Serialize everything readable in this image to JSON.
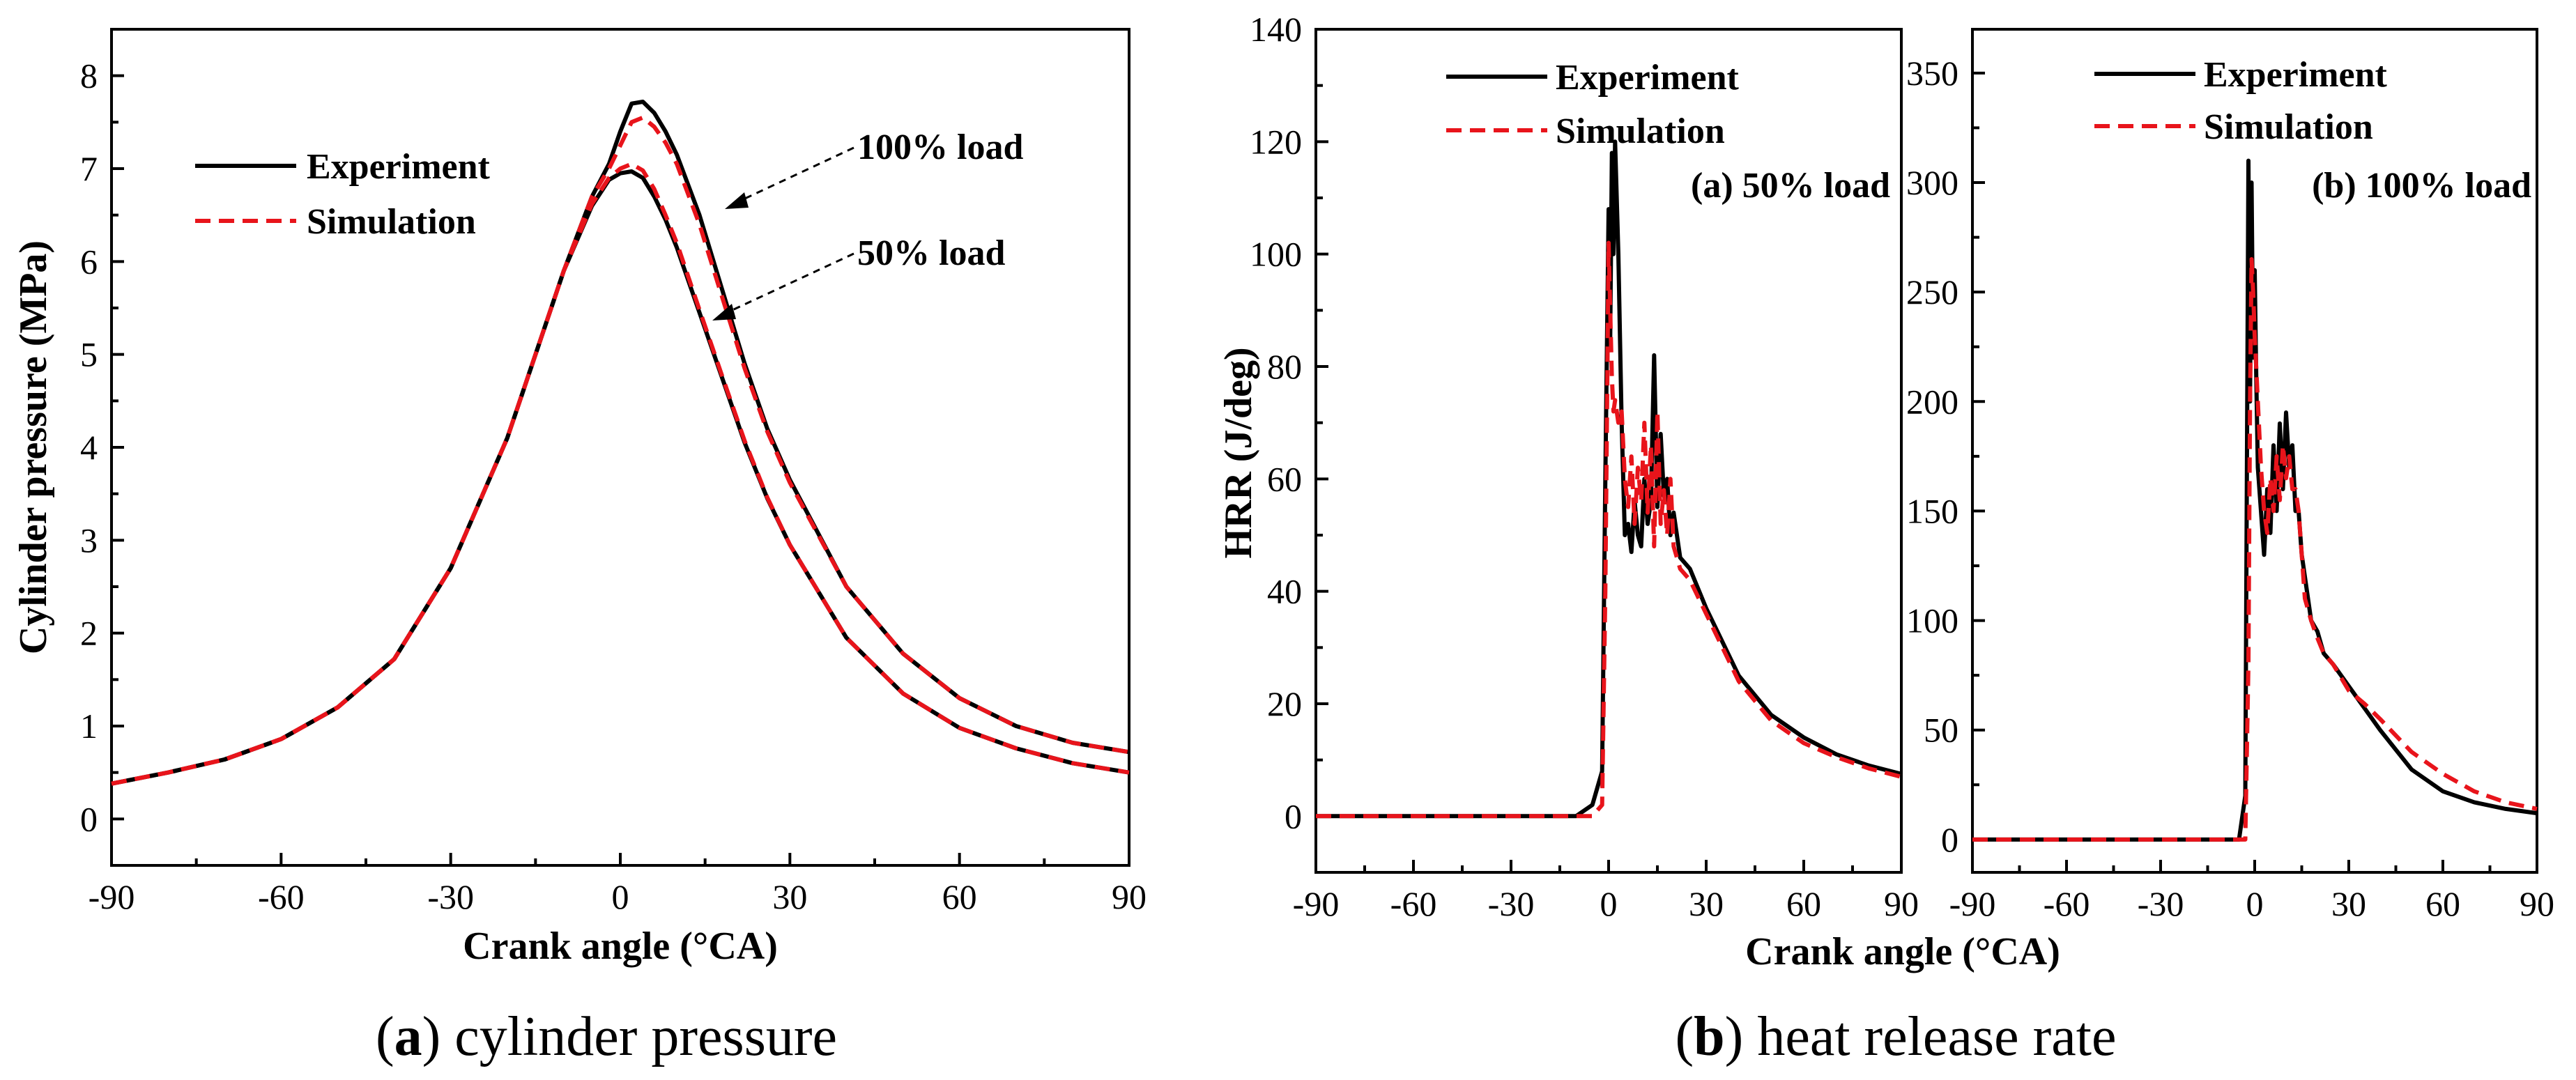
{
  "figure": {
    "caption_a_letter": "a",
    "caption_a_text": " cylinder pressure",
    "caption_b_letter": "b",
    "caption_b_text": " heat release rate",
    "colors": {
      "experiment": "#000000",
      "simulation": "#e8141b"
    }
  },
  "chart_data": [
    {
      "id": "pressure",
      "type": "line",
      "title": "",
      "xlabel": "Crank angle (°CA)",
      "ylabel": "Cylinder pressure (MPa)",
      "xlim": [
        -90,
        90
      ],
      "ylim": [
        -0.5,
        8.5
      ],
      "xticks": [
        -90,
        -60,
        -30,
        0,
        30,
        60,
        90
      ],
      "xtick_labels": [
        "-90",
        "-60",
        "-30",
        "0",
        "30",
        "60",
        "90"
      ],
      "yticks": [
        0,
        1,
        2,
        3,
        4,
        5,
        6,
        7,
        8
      ],
      "ytick_labels": [
        "0",
        "1",
        "2",
        "3",
        "4",
        "5",
        "6",
        "7",
        "8"
      ],
      "legend": [
        "Experiment",
        "Simulation"
      ],
      "annotations": [
        {
          "text": "100% load",
          "points_to": [
            14,
            6.6
          ]
        },
        {
          "text": "50% load",
          "points_to": [
            11,
            5.4
          ]
        }
      ],
      "series": [
        {
          "name": "Experiment 100% load",
          "style": "experiment",
          "x": [
            -90,
            -80,
            -70,
            -60,
            -50,
            -40,
            -30,
            -20,
            -10,
            -5,
            -2,
            0,
            2,
            4,
            6,
            8,
            10,
            14,
            18,
            22,
            26,
            30,
            40,
            50,
            60,
            70,
            80,
            90
          ],
          "y": [
            0.38,
            0.5,
            0.64,
            0.86,
            1.2,
            1.72,
            2.7,
            4.1,
            5.9,
            6.7,
            7.05,
            7.4,
            7.7,
            7.72,
            7.6,
            7.4,
            7.15,
            6.5,
            5.7,
            4.9,
            4.2,
            3.65,
            2.5,
            1.78,
            1.3,
            1.0,
            0.82,
            0.72
          ]
        },
        {
          "name": "Simulation 100% load",
          "style": "simulation",
          "x": [
            -90,
            -80,
            -70,
            -60,
            -50,
            -40,
            -30,
            -20,
            -10,
            -5,
            -2,
            0,
            2,
            4,
            6,
            8,
            10,
            14,
            18,
            22,
            26,
            30,
            40,
            50,
            60,
            70,
            80,
            90
          ],
          "y": [
            0.38,
            0.5,
            0.64,
            0.86,
            1.2,
            1.72,
            2.7,
            4.1,
            5.9,
            6.7,
            7.0,
            7.25,
            7.5,
            7.55,
            7.45,
            7.28,
            7.05,
            6.4,
            5.62,
            4.85,
            4.17,
            3.62,
            2.5,
            1.78,
            1.3,
            1.0,
            0.82,
            0.72
          ]
        },
        {
          "name": "Experiment 50% load",
          "style": "experiment",
          "x": [
            -90,
            -80,
            -70,
            -60,
            -50,
            -40,
            -30,
            -20,
            -10,
            -5,
            -2,
            0,
            2,
            4,
            6,
            8,
            10,
            14,
            18,
            22,
            26,
            30,
            40,
            50,
            60,
            70,
            80,
            90
          ],
          "y": [
            0.38,
            0.5,
            0.64,
            0.86,
            1.2,
            1.72,
            2.7,
            4.1,
            5.9,
            6.6,
            6.88,
            6.95,
            6.97,
            6.9,
            6.7,
            6.45,
            6.15,
            5.45,
            4.75,
            4.05,
            3.45,
            2.95,
            1.95,
            1.35,
            0.98,
            0.76,
            0.6,
            0.5
          ]
        },
        {
          "name": "Simulation 50% load",
          "style": "simulation",
          "x": [
            -90,
            -80,
            -70,
            -60,
            -50,
            -40,
            -30,
            -20,
            -10,
            -5,
            -2,
            0,
            2,
            4,
            6,
            8,
            10,
            14,
            18,
            22,
            26,
            30,
            40,
            50,
            60,
            70,
            80,
            90
          ],
          "y": [
            0.38,
            0.5,
            0.64,
            0.86,
            1.2,
            1.72,
            2.7,
            4.1,
            5.9,
            6.62,
            6.9,
            7.0,
            7.05,
            6.98,
            6.78,
            6.5,
            6.2,
            5.48,
            4.77,
            4.07,
            3.46,
            2.95,
            1.95,
            1.35,
            0.98,
            0.76,
            0.6,
            0.5
          ]
        }
      ]
    },
    {
      "id": "hrr50",
      "type": "line",
      "title": "(a) 50% load",
      "xlabel": "Crank angle (°CA)",
      "ylabel": "HRR (J/deg)",
      "xlim": [
        -90,
        90
      ],
      "ylim": [
        -10,
        140
      ],
      "xticks": [
        -90,
        -60,
        -30,
        0,
        30,
        60,
        90
      ],
      "xtick_labels": [
        "-90",
        "-60",
        "-30",
        "0",
        "30",
        "60",
        "90"
      ],
      "yticks": [
        0,
        20,
        40,
        60,
        80,
        100,
        120,
        140
      ],
      "ytick_labels": [
        "0",
        "20",
        "40",
        "60",
        "80",
        "100",
        "120",
        "140"
      ],
      "legend": [
        "Experiment",
        "Simulation"
      ],
      "series": [
        {
          "name": "Experiment",
          "style": "experiment",
          "x": [
            -90,
            -10,
            -5,
            -2,
            -1,
            0,
            0.5,
            1,
            1.5,
            2,
            3,
            4,
            5,
            6,
            7,
            8,
            9,
            10,
            11,
            12,
            13,
            14,
            15,
            16,
            17,
            18,
            19,
            20,
            22,
            25,
            30,
            40,
            50,
            60,
            70,
            80,
            90
          ],
          "y": [
            0,
            0,
            2,
            8,
            60,
            108,
            85,
            118,
            100,
            120,
            100,
            70,
            50,
            52,
            47,
            56,
            50,
            48,
            60,
            52,
            56,
            82,
            55,
            68,
            57,
            60,
            50,
            54,
            46,
            44,
            37,
            25,
            18,
            14,
            11,
            9,
            7.5
          ]
        },
        {
          "name": "Simulation",
          "style": "simulation",
          "x": [
            -90,
            -10,
            -5,
            -2,
            -1,
            0,
            0.5,
            1,
            1.5,
            2,
            3,
            4,
            5,
            6,
            7,
            8,
            9,
            10,
            11,
            12,
            13,
            14,
            15,
            16,
            17,
            18,
            19,
            20,
            22,
            25,
            30,
            40,
            50,
            60,
            70,
            80,
            90
          ],
          "y": [
            0,
            0,
            0,
            2,
            40,
            102,
            90,
            78,
            72,
            74,
            70,
            72,
            60,
            55,
            64,
            52,
            62,
            56,
            70,
            54,
            66,
            48,
            72,
            52,
            58,
            50,
            60,
            48,
            44,
            42,
            36,
            24,
            17,
            13,
            10.5,
            8.5,
            7
          ]
        }
      ]
    },
    {
      "id": "hrr100",
      "type": "line",
      "title": "(b) 100% load",
      "xlabel": "Crank angle (°CA)",
      "ylabel": "",
      "xlim": [
        -90,
        90
      ],
      "ylim": [
        -15,
        370
      ],
      "xticks": [
        -90,
        -60,
        -30,
        0,
        30,
        60,
        90
      ],
      "xtick_labels": [
        "-90",
        "-60",
        "-30",
        "0",
        "30",
        "60",
        "90"
      ],
      "yticks": [
        0,
        50,
        100,
        150,
        200,
        250,
        300,
        350
      ],
      "ytick_labels": [
        "0",
        "50",
        "100",
        "150",
        "200",
        "250",
        "300",
        "350"
      ],
      "legend": [
        "Experiment",
        "Simulation"
      ],
      "series": [
        {
          "name": "Experiment",
          "style": "experiment",
          "x": [
            -90,
            -5,
            -3,
            -2,
            -1.5,
            -1,
            -0.5,
            0,
            0.5,
            1,
            2,
            3,
            4,
            5,
            6,
            7,
            8,
            9,
            10,
            11,
            12,
            13,
            14,
            15,
            16,
            18,
            20,
            22,
            25,
            30,
            35,
            40,
            50,
            60,
            70,
            80,
            90
          ],
          "y": [
            0,
            0,
            20,
            310,
            200,
            300,
            220,
            260,
            210,
            170,
            150,
            130,
            160,
            140,
            180,
            150,
            190,
            160,
            195,
            170,
            180,
            150,
            150,
            130,
            120,
            100,
            95,
            85,
            80,
            70,
            60,
            50,
            32,
            22,
            17,
            14,
            12
          ]
        },
        {
          "name": "Simulation",
          "style": "simulation",
          "x": [
            -90,
            -5,
            -3,
            -2,
            -1.5,
            -1,
            -0.5,
            0,
            0.5,
            1,
            2,
            3,
            4,
            5,
            6,
            7,
            8,
            9,
            10,
            11,
            12,
            13,
            14,
            15,
            16,
            18,
            20,
            22,
            25,
            30,
            35,
            40,
            50,
            60,
            70,
            80,
            90
          ],
          "y": [
            0,
            0,
            0,
            80,
            200,
            265,
            250,
            230,
            215,
            200,
            170,
            150,
            140,
            165,
            150,
            175,
            155,
            180,
            165,
            175,
            160,
            160,
            150,
            130,
            110,
            100,
            92,
            85,
            80,
            68,
            62,
            55,
            40,
            30,
            22,
            17,
            14
          ]
        }
      ]
    }
  ]
}
